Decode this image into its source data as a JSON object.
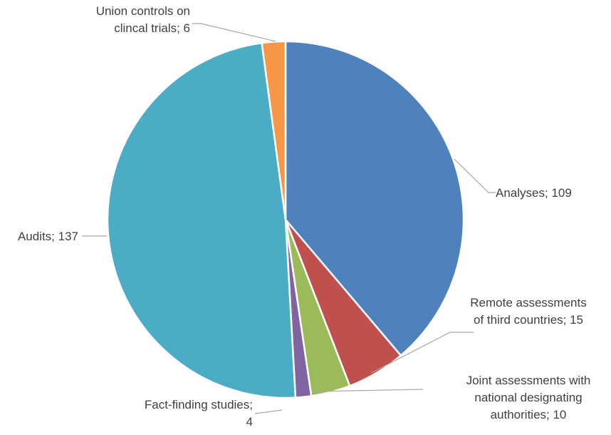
{
  "chart_data": {
    "type": "pie",
    "title": "",
    "slices": [
      {
        "label_lines": [
          "Analyses; 109"
        ],
        "value": 109,
        "color": "#4f81bd"
      },
      {
        "label_lines": [
          "Remote assessments",
          "of third countries; 15"
        ],
        "value": 15,
        "color": "#c0504d"
      },
      {
        "label_lines": [
          "Joint assessments with",
          "national designating",
          "authorities; 10"
        ],
        "value": 10,
        "color": "#9bbb59"
      },
      {
        "label_lines": [
          "Fact-finding studies;",
          "4"
        ],
        "value": 4,
        "color": "#8064a2"
      },
      {
        "label_lines": [
          "Audits; 137"
        ],
        "value": 137,
        "color": "#4bacc6"
      },
      {
        "label_lines": [
          "Union controls on",
          "clincal trials; 6"
        ],
        "value": 6,
        "color": "#f79646"
      }
    ]
  }
}
